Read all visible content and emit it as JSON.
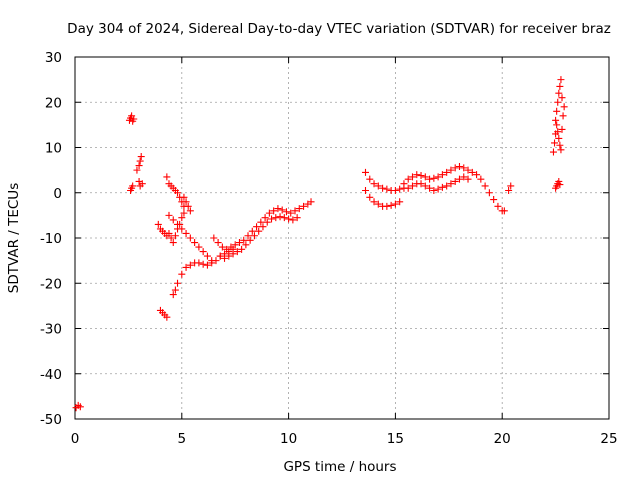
{
  "chart_data": {
    "type": "scatter",
    "title": "Day 304 of 2024, Sidereal Day-to-day VTEC variation (SDTVAR) for receiver braz",
    "xlabel": "GPS time / hours",
    "ylabel": "SDTVAR / TECUs",
    "xlim": [
      0,
      25
    ],
    "ylim": [
      -50,
      30
    ],
    "grid": true,
    "marker": "+",
    "color": "#ff0000",
    "x_ticks": [
      0,
      5,
      10,
      15,
      20,
      25
    ],
    "x_tick_labels": [
      "0",
      "5",
      "10",
      "15",
      "20",
      "25"
    ],
    "y_ticks": [
      -50,
      -40,
      -30,
      -20,
      -10,
      0,
      10,
      20,
      30
    ],
    "y_tick_labels": [
      "-50",
      "-40",
      "-30",
      "-20",
      "-10",
      "0",
      "10",
      "20",
      "30"
    ],
    "series": [
      {
        "name": "braz",
        "x": [
          0.05,
          0.15,
          0.25,
          2.55,
          2.6,
          2.65,
          2.7,
          2.75,
          2.6,
          2.65,
          2.7,
          2.9,
          3.0,
          3.05,
          3.1,
          3.15,
          3.0,
          3.05,
          3.9,
          4.0,
          4.1,
          4.2,
          4.3,
          4.4,
          4.5,
          4.6,
          4.7,
          4.8,
          4.9,
          5.0,
          5.1,
          4.0,
          4.1,
          4.2,
          4.3,
          4.3,
          4.4,
          4.5,
          4.6,
          4.7,
          4.8,
          4.9,
          5.0,
          5.1,
          4.6,
          4.7,
          4.8,
          5.0,
          5.2,
          5.4,
          5.6,
          5.8,
          6.0,
          6.2,
          6.4,
          6.6,
          6.8,
          7.0,
          7.2,
          7.4,
          4.4,
          4.6,
          4.8,
          5.0,
          5.2,
          5.4,
          5.6,
          5.8,
          6.0,
          6.2,
          6.4,
          5.1,
          5.2,
          5.3,
          5.4,
          6.5,
          6.7,
          6.9,
          7.1,
          7.3,
          7.5,
          7.7,
          7.9,
          8.1,
          8.3,
          8.5,
          8.7,
          8.9,
          9.1,
          9.3,
          9.5,
          9.7,
          9.9,
          10.1,
          10.3,
          10.5,
          10.7,
          10.9,
          11.05,
          6.8,
          7.0,
          7.2,
          7.4,
          7.6,
          7.8,
          8.0,
          8.2,
          8.4,
          8.6,
          8.8,
          9.0,
          9.2,
          9.4,
          9.6,
          9.8,
          10.0,
          10.2,
          10.4,
          13.6,
          13.8,
          14.0,
          14.2,
          14.4,
          14.6,
          14.8,
          15.0,
          15.2,
          15.4,
          13.6,
          13.8,
          14.0,
          14.2,
          14.4,
          14.6,
          14.8,
          15.0,
          15.2,
          15.4,
          15.6,
          15.8,
          16.0,
          16.2,
          16.4,
          16.6,
          16.8,
          17.0,
          17.2,
          17.4,
          17.6,
          17.8,
          18.0,
          18.2,
          18.4,
          18.6,
          15.6,
          15.8,
          16.0,
          16.2,
          16.4,
          16.6,
          16.8,
          17.0,
          17.2,
          17.4,
          17.6,
          17.8,
          18.0,
          18.2,
          18.4,
          18.8,
          19.0,
          19.2,
          19.4,
          19.6,
          19.8,
          20.0,
          20.1,
          20.3,
          20.4,
          22.4,
          22.45,
          22.5,
          22.55,
          22.6,
          22.65,
          22.7,
          22.75,
          22.8,
          22.85,
          22.9,
          22.5,
          22.55,
          22.6,
          22.65,
          22.7,
          22.75,
          22.8,
          22.5,
          22.55,
          22.6,
          22.65,
          22.7
        ],
        "y": [
          -47.5,
          -47.0,
          -47.3,
          16.0,
          16.5,
          17.0,
          15.8,
          16.3,
          0.5,
          1.0,
          1.5,
          5.0,
          6.0,
          7.0,
          8.0,
          2.0,
          2.5,
          1.5,
          -7.0,
          -8.0,
          -8.5,
          -9.0,
          -9.5,
          -9.0,
          -10.0,
          -11.0,
          -9.5,
          -8.0,
          -7.0,
          -5.5,
          -4.5,
          -26.0,
          -26.5,
          -27.0,
          -27.5,
          3.5,
          2.0,
          1.5,
          1.0,
          0.5,
          0.0,
          -1.0,
          -2.0,
          -3.0,
          -22.5,
          -21.5,
          -20.0,
          -18.0,
          -16.5,
          -16.0,
          -15.5,
          -15.5,
          -15.8,
          -16.0,
          -15.5,
          -15.0,
          -14.0,
          -13.5,
          -13.0,
          -12.5,
          -5.0,
          -6.0,
          -7.0,
          -8.0,
          -9.0,
          -10.0,
          -11.0,
          -12.0,
          -13.0,
          -14.0,
          -15.0,
          -1.0,
          -2.0,
          -3.0,
          -4.0,
          -10.0,
          -11.0,
          -12.0,
          -12.5,
          -12.0,
          -11.5,
          -11.0,
          -10.5,
          -9.5,
          -8.5,
          -7.5,
          -6.5,
          -5.5,
          -4.5,
          -4.0,
          -3.5,
          -3.8,
          -4.2,
          -4.5,
          -4.0,
          -3.5,
          -3.0,
          -2.5,
          -2.0,
          -14.0,
          -14.5,
          -14.0,
          -13.5,
          -13.0,
          -12.5,
          -11.5,
          -10.5,
          -9.5,
          -8.5,
          -7.5,
          -6.5,
          -5.8,
          -5.5,
          -5.3,
          -5.5,
          -5.8,
          -6.0,
          -5.5,
          4.5,
          3.0,
          2.0,
          1.5,
          1.0,
          0.8,
          0.5,
          0.5,
          0.8,
          1.0,
          0.5,
          -1.0,
          -2.0,
          -2.5,
          -3.0,
          -3.0,
          -2.8,
          -2.5,
          -2.0,
          2.0,
          3.0,
          3.5,
          4.0,
          3.8,
          3.5,
          3.0,
          3.2,
          3.5,
          4.0,
          4.5,
          5.0,
          5.5,
          5.8,
          5.5,
          5.0,
          4.5,
          1.0,
          1.5,
          2.0,
          2.0,
          1.5,
          1.0,
          0.5,
          0.8,
          1.2,
          1.5,
          2.0,
          2.5,
          3.0,
          3.5,
          3.0,
          4.0,
          3.0,
          1.5,
          0.0,
          -1.5,
          -3.0,
          -4.0,
          -4.0,
          0.5,
          1.5,
          9.0,
          11.0,
          13.0,
          15.0,
          13.5,
          12.0,
          10.5,
          9.5,
          14.0,
          17.0,
          19.0,
          16.0,
          18.0,
          20.0,
          22.0,
          23.5,
          25.0,
          21.0,
          1.0,
          1.5,
          2.0,
          2.5,
          1.8
        ]
      }
    ]
  }
}
